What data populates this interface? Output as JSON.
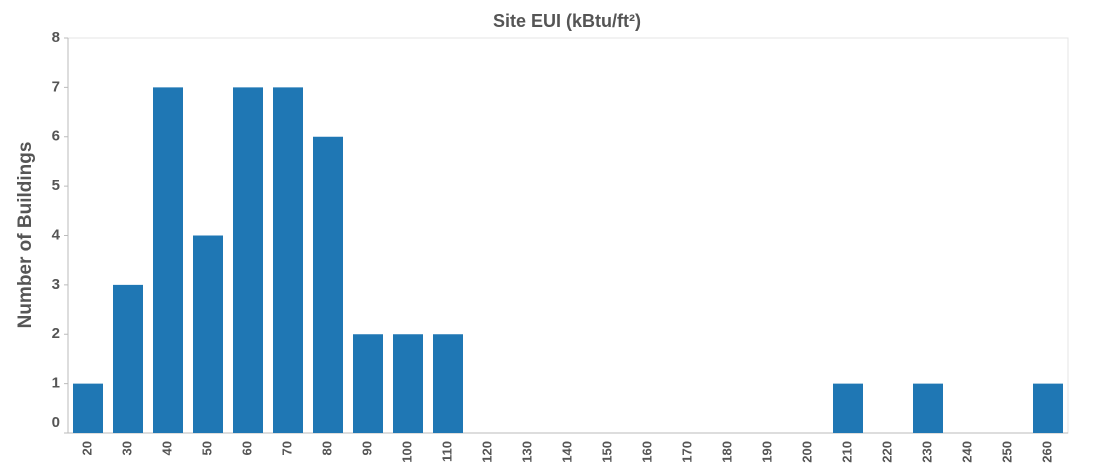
{
  "chart_data": {
    "type": "bar",
    "title": "Site EUI (kBtu/ft²)",
    "y_label": "Number of Buildings",
    "categories": [
      "20",
      "30",
      "40",
      "50",
      "60",
      "70",
      "80",
      "90",
      "100",
      "110",
      "120",
      "130",
      "140",
      "150",
      "160",
      "170",
      "180",
      "190",
      "200",
      "210",
      "220",
      "230",
      "240",
      "250",
      "260"
    ],
    "values": [
      1,
      3,
      7,
      4,
      7,
      7,
      6,
      2,
      2,
      2,
      0,
      0,
      0,
      0,
      0,
      0,
      0,
      0,
      0,
      1,
      0,
      1,
      0,
      0,
      1
    ],
    "color": "#1f77b4",
    "ylim": [
      0,
      8
    ],
    "yticks": [
      0,
      1,
      2,
      3,
      4,
      5,
      6,
      7,
      8
    ],
    "grid": false
  }
}
